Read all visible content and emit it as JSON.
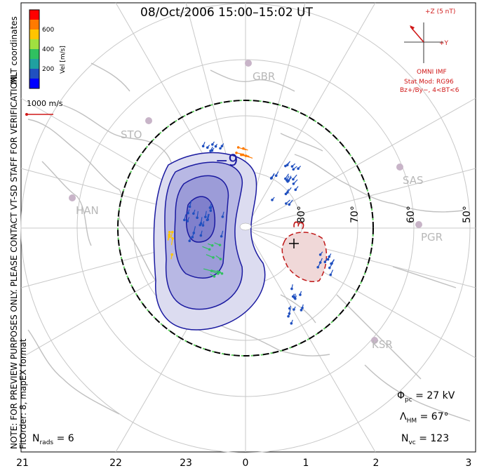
{
  "title": "08/Oct/2006 15:00–15:02 UT",
  "side_note_line1": "NOTE: FOR PREVIEW PURPOSES ONLY. PLEASE CONTACT VT-SD STAFF FOR VERIFICATION.",
  "side_note_line2": "FitOrder: 8, mapEX format",
  "coords_label": "MLT coordinates",
  "velocity_scale": {
    "axis_label": "Vel [m/s]",
    "ticks": [
      "600",
      "400",
      "200"
    ],
    "colors": [
      "#ff0000",
      "#ff7a00",
      "#ffc400",
      "#a0e040",
      "#30c060",
      "#20a0a0",
      "#2050c0",
      "#0000ff"
    ]
  },
  "vector_scale_label": "1000 m/s",
  "imf": {
    "z_label": "+Z (5 nT)",
    "y_label": "+Y",
    "source": "OMNI IMF",
    "model_line1": "Stat Mod: RG96",
    "model_line2": "Bz+/By−, 4<BT<6",
    "color": "#d01818"
  },
  "stations": [
    "GBR",
    "STO",
    "HAN",
    "SAS",
    "PGR",
    "KSR"
  ],
  "latitude_labels": [
    "80°",
    "70°",
    "60°",
    "50°"
  ],
  "contour_labels": [
    "−9",
    "3"
  ],
  "stats": {
    "phi_pc": "= 27 kV",
    "lambda_hm": "= 67°",
    "n_vc": "= 123",
    "n_rads": "= 6"
  },
  "mlt_ticks": [
    "21",
    "22",
    "23",
    "0",
    "1",
    "2",
    "3"
  ]
}
